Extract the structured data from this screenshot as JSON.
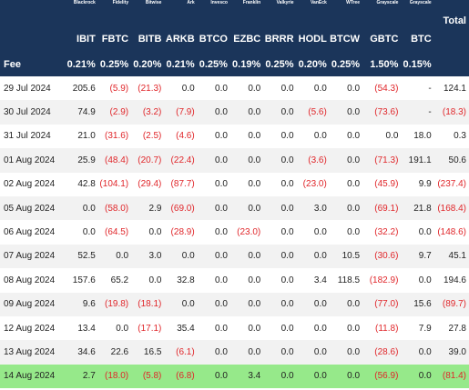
{
  "colors": {
    "header_bg": "#1b355a",
    "header_text": "#ffffff",
    "negative": "#e0262a",
    "highlight_row": "#96e98a",
    "alt_row": "#f2f2f2"
  },
  "table": {
    "issuers": [
      "Blackrock",
      "Fidelity",
      "Bitwise",
      "Ark",
      "Invesco",
      "Franklin",
      "Valkyrie",
      "VanEck",
      "WTree",
      "Grayscale",
      "Grayscale"
    ],
    "tickers": [
      "IBIT",
      "FBTC",
      "BITB",
      "ARKB",
      "BTCO",
      "EZBC",
      "BRRR",
      "HODL",
      "BTCW",
      "GBTC",
      "BTC"
    ],
    "total_label": "Total",
    "fee_label": "Fee",
    "fees": [
      "0.21%",
      "0.25%",
      "0.20%",
      "0.21%",
      "0.25%",
      "0.19%",
      "0.25%",
      "0.20%",
      "0.25%",
      "1.50%",
      "0.15%"
    ],
    "rows": [
      {
        "date": "29 Jul 2024",
        "values": [
          "205.6",
          "(5.9)",
          "(21.3)",
          "0.0",
          "0.0",
          "0.0",
          "0.0",
          "0.0",
          "0.0",
          "(54.3)",
          "-"
        ],
        "total": "124.1"
      },
      {
        "date": "30 Jul 2024",
        "values": [
          "74.9",
          "(2.9)",
          "(3.2)",
          "(7.9)",
          "0.0",
          "0.0",
          "0.0",
          "(5.6)",
          "0.0",
          "(73.6)",
          "-"
        ],
        "total": "(18.3)"
      },
      {
        "date": "31 Jul 2024",
        "values": [
          "21.0",
          "(31.6)",
          "(2.5)",
          "(4.6)",
          "0.0",
          "0.0",
          "0.0",
          "0.0",
          "0.0",
          "0.0",
          "18.0"
        ],
        "total": "0.3"
      },
      {
        "date": "01 Aug 2024",
        "values": [
          "25.9",
          "(48.4)",
          "(20.7)",
          "(22.4)",
          "0.0",
          "0.0",
          "0.0",
          "(3.6)",
          "0.0",
          "(71.3)",
          "191.1"
        ],
        "total": "50.6"
      },
      {
        "date": "02 Aug 2024",
        "values": [
          "42.8",
          "(104.1)",
          "(29.4)",
          "(87.7)",
          "0.0",
          "0.0",
          "0.0",
          "(23.0)",
          "0.0",
          "(45.9)",
          "9.9"
        ],
        "total": "(237.4)"
      },
      {
        "date": "05 Aug 2024",
        "values": [
          "0.0",
          "(58.0)",
          "2.9",
          "(69.0)",
          "0.0",
          "0.0",
          "0.0",
          "3.0",
          "0.0",
          "(69.1)",
          "21.8"
        ],
        "total": "(168.4)"
      },
      {
        "date": "06 Aug 2024",
        "values": [
          "0.0",
          "(64.5)",
          "0.0",
          "(28.9)",
          "0.0",
          "(23.0)",
          "0.0",
          "0.0",
          "0.0",
          "(32.2)",
          "0.0"
        ],
        "total": "(148.6)"
      },
      {
        "date": "07 Aug 2024",
        "values": [
          "52.5",
          "0.0",
          "3.0",
          "0.0",
          "0.0",
          "0.0",
          "0.0",
          "0.0",
          "10.5",
          "(30.6)",
          "9.7"
        ],
        "total": "45.1"
      },
      {
        "date": "08 Aug 2024",
        "values": [
          "157.6",
          "65.2",
          "0.0",
          "32.8",
          "0.0",
          "0.0",
          "0.0",
          "3.4",
          "118.5",
          "(182.9)",
          "0.0"
        ],
        "total": "194.6"
      },
      {
        "date": "09 Aug 2024",
        "values": [
          "9.6",
          "(19.8)",
          "(18.1)",
          "0.0",
          "0.0",
          "0.0",
          "0.0",
          "0.0",
          "0.0",
          "(77.0)",
          "15.6"
        ],
        "total": "(89.7)"
      },
      {
        "date": "12 Aug 2024",
        "values": [
          "13.4",
          "0.0",
          "(17.1)",
          "35.4",
          "0.0",
          "0.0",
          "0.0",
          "0.0",
          "0.0",
          "(11.8)",
          "7.9"
        ],
        "total": "27.8"
      },
      {
        "date": "13 Aug 2024",
        "values": [
          "34.6",
          "22.6",
          "16.5",
          "(6.1)",
          "0.0",
          "0.0",
          "0.0",
          "0.0",
          "0.0",
          "(28.6)",
          "0.0"
        ],
        "total": "39.0"
      },
      {
        "date": "14 Aug 2024",
        "values": [
          "2.7",
          "(18.0)",
          "(5.8)",
          "(6.8)",
          "0.0",
          "3.4",
          "0.0",
          "0.0",
          "0.0",
          "(56.9)",
          "0.0"
        ],
        "total": "(81.4)",
        "highlighted": true
      }
    ]
  }
}
